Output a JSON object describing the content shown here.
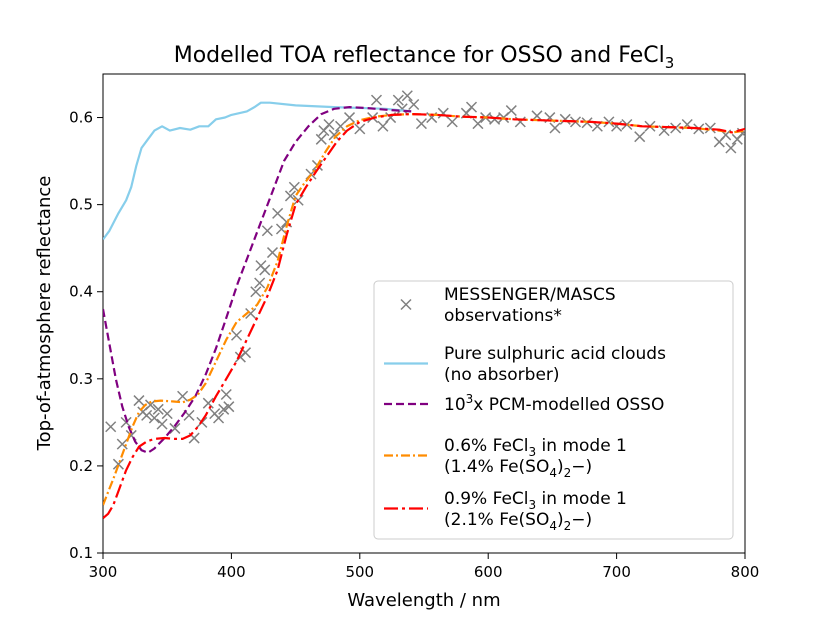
{
  "chart_data": {
    "type": "line",
    "title": "Modelled TOA reflectance for OSSO and FeCl",
    "title_subscript": "3",
    "xlabel": "Wavelength / nm",
    "ylabel": "Top-of-atmosphere reflectance",
    "xlim": [
      300,
      800
    ],
    "ylim": [
      0.1,
      0.65
    ],
    "x_ticks": [
      "300",
      "400",
      "500",
      "600",
      "700",
      "800"
    ],
    "y_ticks": [
      "0.1",
      "0.2",
      "0.3",
      "0.4",
      "0.5",
      "0.6"
    ],
    "grid": false,
    "legend_position": "right",
    "legend": [
      {
        "marker": "x",
        "lines": [
          [
            "MESSENGER/MASCS"
          ],
          [
            "observations*"
          ]
        ]
      },
      {
        "marker": "solid",
        "lines": [
          [
            "Pure sulphuric acid clouds"
          ],
          [
            "(no absorber)"
          ]
        ]
      },
      {
        "marker": "dashed",
        "lines": [
          [
            "10",
            "3",
            "x PCM-modelled OSSO"
          ]
        ]
      },
      {
        "marker": "dashdot",
        "lines": [
          [
            "0.6% FeCl",
            "3",
            " in mode 1"
          ],
          [
            "(1.4% Fe(SO",
            "4",
            ")",
            "2",
            "−)"
          ]
        ]
      },
      {
        "marker": "dashdot-long",
        "lines": [
          [
            "0.9% FeCl",
            "3",
            " in mode 1"
          ],
          [
            "(2.1% Fe(SO",
            "4",
            ")",
            "2",
            "−)"
          ]
        ]
      }
    ],
    "series": [
      {
        "key": "observations",
        "style": "x",
        "color": "#808080",
        "points": [
          [
            306,
            0.245
          ],
          [
            312,
            0.202
          ],
          [
            315,
            0.225
          ],
          [
            318,
            0.25
          ],
          [
            322,
            0.235
          ],
          [
            328,
            0.275
          ],
          [
            331,
            0.262
          ],
          [
            334,
            0.258
          ],
          [
            337,
            0.27
          ],
          [
            340,
            0.255
          ],
          [
            343,
            0.265
          ],
          [
            346,
            0.248
          ],
          [
            350,
            0.26
          ],
          [
            356,
            0.243
          ],
          [
            362,
            0.28
          ],
          [
            367,
            0.258
          ],
          [
            371,
            0.232
          ],
          [
            377,
            0.25
          ],
          [
            382,
            0.272
          ],
          [
            387,
            0.26
          ],
          [
            390,
            0.255
          ],
          [
            394,
            0.265
          ],
          [
            396,
            0.282
          ],
          [
            398,
            0.268
          ],
          [
            404,
            0.35
          ],
          [
            407,
            0.325
          ],
          [
            411,
            0.33
          ],
          [
            415,
            0.375
          ],
          [
            419,
            0.4
          ],
          [
            422,
            0.41
          ],
          [
            423,
            0.43
          ],
          [
            426,
            0.425
          ],
          [
            428,
            0.47
          ],
          [
            432,
            0.445
          ],
          [
            436,
            0.49
          ],
          [
            439,
            0.472
          ],
          [
            443,
            0.48
          ],
          [
            446,
            0.51
          ],
          [
            449,
            0.52
          ],
          [
            452,
            0.505
          ],
          [
            462,
            0.535
          ],
          [
            467,
            0.545
          ],
          [
            470,
            0.575
          ],
          [
            472,
            0.585
          ],
          [
            476,
            0.592
          ],
          [
            480,
            0.58
          ],
          [
            485,
            0.59
          ],
          [
            492,
            0.6
          ],
          [
            500,
            0.587
          ],
          [
            510,
            0.6
          ],
          [
            513,
            0.62
          ],
          [
            518,
            0.59
          ],
          [
            524,
            0.6
          ],
          [
            530,
            0.62
          ],
          [
            533,
            0.61
          ],
          [
            537,
            0.625
          ],
          [
            542,
            0.615
          ],
          [
            548,
            0.593
          ],
          [
            556,
            0.6
          ],
          [
            565,
            0.605
          ],
          [
            572,
            0.595
          ],
          [
            583,
            0.605
          ],
          [
            587,
            0.612
          ],
          [
            592,
            0.593
          ],
          [
            598,
            0.6
          ],
          [
            605,
            0.598
          ],
          [
            612,
            0.6
          ],
          [
            618,
            0.608
          ],
          [
            625,
            0.595
          ],
          [
            638,
            0.602
          ],
          [
            648,
            0.6
          ],
          [
            652,
            0.588
          ],
          [
            660,
            0.598
          ],
          [
            668,
            0.595
          ],
          [
            677,
            0.594
          ],
          [
            685,
            0.59
          ],
          [
            694,
            0.595
          ],
          [
            700,
            0.59
          ],
          [
            708,
            0.592
          ],
          [
            718,
            0.578
          ],
          [
            726,
            0.59
          ],
          [
            737,
            0.585
          ],
          [
            746,
            0.588
          ],
          [
            755,
            0.592
          ],
          [
            764,
            0.587
          ],
          [
            773,
            0.588
          ],
          [
            780,
            0.572
          ],
          [
            785,
            0.58
          ],
          [
            789,
            0.565
          ],
          [
            794,
            0.575
          ],
          [
            798,
            0.582
          ]
        ]
      },
      {
        "key": "pure",
        "style": "solid",
        "color": "#87ceeb",
        "points": [
          [
            300,
            0.46
          ],
          [
            305,
            0.47
          ],
          [
            312,
            0.49
          ],
          [
            318,
            0.505
          ],
          [
            322,
            0.52
          ],
          [
            326,
            0.545
          ],
          [
            330,
            0.565
          ],
          [
            335,
            0.575
          ],
          [
            340,
            0.585
          ],
          [
            346,
            0.59
          ],
          [
            352,
            0.585
          ],
          [
            360,
            0.588
          ],
          [
            368,
            0.586
          ],
          [
            375,
            0.59
          ],
          [
            382,
            0.59
          ],
          [
            388,
            0.598
          ],
          [
            395,
            0.6
          ],
          [
            400,
            0.603
          ],
          [
            406,
            0.605
          ],
          [
            412,
            0.607
          ],
          [
            418,
            0.612
          ],
          [
            423,
            0.617
          ],
          [
            430,
            0.617
          ],
          [
            450,
            0.614
          ],
          [
            480,
            0.612
          ],
          [
            520,
            0.61
          ],
          [
            540,
            0.607
          ]
        ]
      },
      {
        "key": "osso",
        "style": "dashed",
        "color": "#800080",
        "points": [
          [
            300,
            0.38
          ],
          [
            305,
            0.34
          ],
          [
            310,
            0.3
          ],
          [
            315,
            0.268
          ],
          [
            320,
            0.245
          ],
          [
            325,
            0.228
          ],
          [
            330,
            0.218
          ],
          [
            335,
            0.215
          ],
          [
            340,
            0.22
          ],
          [
            348,
            0.232
          ],
          [
            356,
            0.246
          ],
          [
            364,
            0.262
          ],
          [
            372,
            0.28
          ],
          [
            380,
            0.305
          ],
          [
            388,
            0.335
          ],
          [
            396,
            0.37
          ],
          [
            405,
            0.41
          ],
          [
            414,
            0.445
          ],
          [
            423,
            0.48
          ],
          [
            432,
            0.515
          ],
          [
            441,
            0.55
          ],
          [
            450,
            0.572
          ],
          [
            460,
            0.59
          ],
          [
            470,
            0.604
          ],
          [
            480,
            0.61
          ],
          [
            492,
            0.612
          ],
          [
            505,
            0.611
          ],
          [
            520,
            0.609
          ],
          [
            540,
            0.607
          ]
        ]
      },
      {
        "key": "fecl_06",
        "style": "dashdot",
        "color": "#ff8c00",
        "points": [
          [
            300,
            0.155
          ],
          [
            304,
            0.17
          ],
          [
            308,
            0.185
          ],
          [
            313,
            0.205
          ],
          [
            318,
            0.225
          ],
          [
            323,
            0.245
          ],
          [
            328,
            0.262
          ],
          [
            333,
            0.27
          ],
          [
            338,
            0.274
          ],
          [
            345,
            0.275
          ],
          [
            355,
            0.274
          ],
          [
            362,
            0.273
          ],
          [
            368,
            0.276
          ],
          [
            374,
            0.282
          ],
          [
            380,
            0.295
          ],
          [
            388,
            0.32
          ],
          [
            396,
            0.345
          ],
          [
            404,
            0.365
          ],
          [
            412,
            0.375
          ],
          [
            420,
            0.385
          ],
          [
            428,
            0.405
          ],
          [
            436,
            0.435
          ],
          [
            443,
            0.475
          ],
          [
            450,
            0.51
          ],
          [
            457,
            0.525
          ],
          [
            465,
            0.54
          ],
          [
            473,
            0.56
          ],
          [
            481,
            0.578
          ],
          [
            490,
            0.59
          ],
          [
            500,
            0.597
          ],
          [
            512,
            0.601
          ],
          [
            525,
            0.603
          ],
          [
            540,
            0.604
          ],
          [
            560,
            0.603
          ],
          [
            580,
            0.601
          ],
          [
            600,
            0.6
          ],
          [
            620,
            0.598
          ],
          [
            640,
            0.597
          ],
          [
            660,
            0.596
          ],
          [
            680,
            0.595
          ],
          [
            700,
            0.593
          ],
          [
            720,
            0.59
          ],
          [
            740,
            0.589
          ],
          [
            760,
            0.588
          ],
          [
            780,
            0.585
          ],
          [
            790,
            0.583
          ],
          [
            800,
            0.585
          ]
        ]
      },
      {
        "key": "fecl_09",
        "style": "dashdot-long",
        "color": "#ff0000",
        "points": [
          [
            300,
            0.14
          ],
          [
            304,
            0.145
          ],
          [
            308,
            0.155
          ],
          [
            313,
            0.175
          ],
          [
            318,
            0.195
          ],
          [
            323,
            0.21
          ],
          [
            328,
            0.222
          ],
          [
            334,
            0.228
          ],
          [
            340,
            0.231
          ],
          [
            348,
            0.232
          ],
          [
            356,
            0.231
          ],
          [
            362,
            0.231
          ],
          [
            368,
            0.235
          ],
          [
            374,
            0.245
          ],
          [
            380,
            0.258
          ],
          [
            388,
            0.28
          ],
          [
            396,
            0.3
          ],
          [
            404,
            0.32
          ],
          [
            412,
            0.345
          ],
          [
            420,
            0.37
          ],
          [
            428,
            0.395
          ],
          [
            436,
            0.425
          ],
          [
            443,
            0.465
          ],
          [
            450,
            0.5
          ],
          [
            458,
            0.52
          ],
          [
            466,
            0.538
          ],
          [
            474,
            0.555
          ],
          [
            482,
            0.572
          ],
          [
            490,
            0.585
          ],
          [
            500,
            0.595
          ],
          [
            512,
            0.6
          ],
          [
            525,
            0.603
          ],
          [
            540,
            0.604
          ],
          [
            560,
            0.603
          ],
          [
            580,
            0.601
          ],
          [
            600,
            0.6
          ],
          [
            620,
            0.598
          ],
          [
            640,
            0.597
          ],
          [
            660,
            0.596
          ],
          [
            680,
            0.595
          ],
          [
            700,
            0.593
          ],
          [
            720,
            0.59
          ],
          [
            740,
            0.589
          ],
          [
            760,
            0.588
          ],
          [
            780,
            0.586
          ],
          [
            790,
            0.583
          ],
          [
            800,
            0.587
          ]
        ]
      }
    ]
  }
}
